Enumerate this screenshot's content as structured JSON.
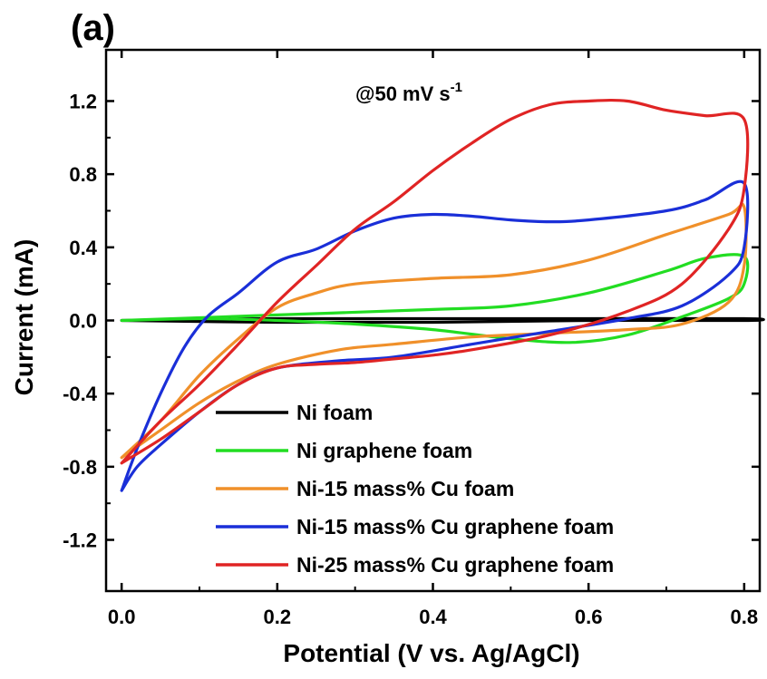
{
  "chart_data": {
    "type": "line",
    "panel_label": "(a)",
    "annotation": {
      "text": "@50 mV s",
      "superscript": "-1"
    },
    "xlabel": "Potential (V vs. Ag/AgCl)",
    "ylabel": "Current (mA)",
    "xlim": [
      -0.02,
      0.82
    ],
    "ylim": [
      -1.48,
      1.48
    ],
    "xticks": [
      0.0,
      0.2,
      0.4,
      0.6,
      0.8
    ],
    "xtick_labels": [
      "0.0",
      "0.2",
      "0.4",
      "0.6",
      "0.8"
    ],
    "yticks": [
      -1.2,
      -0.8,
      -0.4,
      0.0,
      0.4,
      0.8,
      1.2
    ],
    "ytick_labels": [
      "-1.2",
      "-0.8",
      "-0.4",
      "0.0",
      "0.4",
      "0.8",
      "1.2"
    ],
    "grid": false,
    "legend_position": "bottom-right",
    "series": [
      {
        "name": "Ni foam",
        "color": "#000000",
        "x": [
          0.0,
          0.2,
          0.4,
          0.6,
          0.8,
          0.8,
          0.6,
          0.4,
          0.2,
          0.0
        ],
        "y": [
          0.0,
          0.01,
          0.01,
          0.01,
          0.01,
          0.0,
          0.0,
          -0.01,
          -0.01,
          0.0
        ]
      },
      {
        "name": "Ni graphene foam",
        "color": "#22dd22",
        "x": [
          0.0,
          0.2,
          0.4,
          0.5,
          0.6,
          0.7,
          0.75,
          0.8,
          0.8,
          0.78,
          0.72,
          0.65,
          0.58,
          0.5,
          0.4,
          0.3,
          0.2,
          0.1,
          0.0
        ],
        "y": [
          0.0,
          0.03,
          0.06,
          0.08,
          0.15,
          0.27,
          0.34,
          0.35,
          0.2,
          0.12,
          0.02,
          -0.08,
          -0.12,
          -0.1,
          -0.05,
          -0.02,
          0.0,
          0.01,
          0.0
        ]
      },
      {
        "name": "Ni-15 mass% Cu foam",
        "color": "#f0902a",
        "x": [
          0.0,
          0.05,
          0.1,
          0.15,
          0.2,
          0.25,
          0.3,
          0.4,
          0.5,
          0.6,
          0.7,
          0.78,
          0.8,
          0.8,
          0.78,
          0.72,
          0.65,
          0.55,
          0.45,
          0.35,
          0.28,
          0.2,
          0.15,
          0.1,
          0.05,
          0.0
        ],
        "y": [
          -0.75,
          -0.55,
          -0.3,
          -0.1,
          0.07,
          0.15,
          0.2,
          0.23,
          0.25,
          0.33,
          0.47,
          0.58,
          0.62,
          0.3,
          0.1,
          -0.02,
          -0.05,
          -0.07,
          -0.09,
          -0.13,
          -0.16,
          -0.24,
          -0.33,
          -0.45,
          -0.6,
          -0.75
        ]
      },
      {
        "name": "Ni-15 mass% Cu graphene foam",
        "color": "#1a2fd8",
        "x": [
          0.0,
          0.02,
          0.05,
          0.08,
          0.11,
          0.15,
          0.2,
          0.25,
          0.3,
          0.35,
          0.4,
          0.45,
          0.5,
          0.55,
          0.6,
          0.7,
          0.75,
          0.8,
          0.8,
          0.78,
          0.72,
          0.65,
          0.55,
          0.45,
          0.35,
          0.28,
          0.2,
          0.15,
          0.1,
          0.05,
          0.02,
          0.0
        ],
        "y": [
          -0.93,
          -0.7,
          -0.4,
          -0.15,
          0.02,
          0.15,
          0.32,
          0.39,
          0.49,
          0.56,
          0.58,
          0.57,
          0.55,
          0.54,
          0.55,
          0.6,
          0.66,
          0.75,
          0.4,
          0.25,
          0.08,
          0.01,
          -0.06,
          -0.13,
          -0.2,
          -0.22,
          -0.26,
          -0.35,
          -0.5,
          -0.68,
          -0.8,
          -0.93
        ]
      },
      {
        "name": "Ni-25 mass% Cu graphene foam",
        "color": "#e02424",
        "x": [
          0.0,
          0.05,
          0.1,
          0.15,
          0.2,
          0.25,
          0.3,
          0.35,
          0.4,
          0.45,
          0.5,
          0.55,
          0.6,
          0.65,
          0.7,
          0.75,
          0.8,
          0.8,
          0.78,
          0.72,
          0.65,
          0.55,
          0.45,
          0.4,
          0.35,
          0.3,
          0.25,
          0.2,
          0.15,
          0.1,
          0.05,
          0.0
        ],
        "y": [
          -0.78,
          -0.55,
          -0.35,
          -0.13,
          0.1,
          0.3,
          0.5,
          0.65,
          0.82,
          0.97,
          1.1,
          1.18,
          1.2,
          1.2,
          1.15,
          1.12,
          1.1,
          0.72,
          0.5,
          0.2,
          0.05,
          -0.08,
          -0.16,
          -0.19,
          -0.21,
          -0.23,
          -0.24,
          -0.26,
          -0.35,
          -0.5,
          -0.65,
          -0.78
        ]
      }
    ]
  }
}
